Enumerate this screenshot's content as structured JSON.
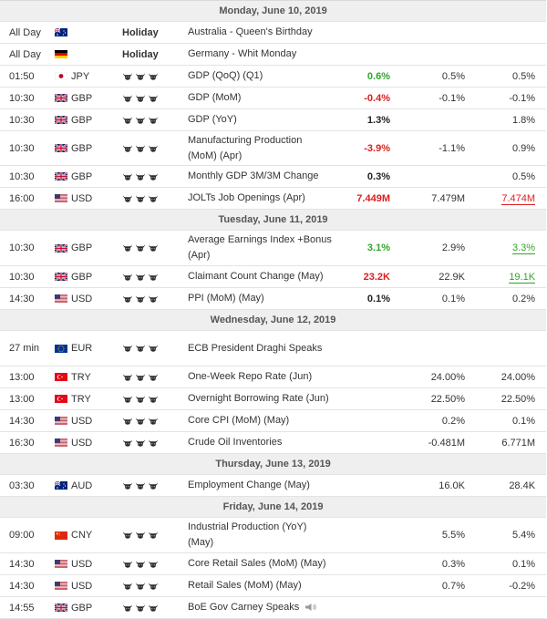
{
  "days": [
    {
      "label": "Monday, June 10, 2019",
      "events": [
        {
          "time": "All Day",
          "flag": "au-flag-icon",
          "currency": "",
          "importance": "holiday",
          "importance_label": "Holiday",
          "event": "Australia - Queen's Birthday",
          "actual": "",
          "actual_color": "",
          "forecast": "",
          "previous": "",
          "previous_color": "",
          "previous_mark": "",
          "tall": false
        },
        {
          "time": "All Day",
          "flag": "de-flag-icon",
          "currency": "",
          "importance": "holiday",
          "importance_label": "Holiday",
          "event": "Germany - Whit Monday",
          "actual": "",
          "actual_color": "",
          "forecast": "",
          "previous": "",
          "previous_color": "",
          "previous_mark": "",
          "tall": false
        },
        {
          "time": "01:50",
          "flag": "jp-flag-icon",
          "currency": "JPY",
          "importance": "bulls",
          "importance_label": "",
          "event": "GDP (QoQ) (Q1)",
          "actual": "0.6%",
          "actual_color": "green",
          "forecast": "0.5%",
          "previous": "0.5%",
          "previous_color": "",
          "previous_mark": "",
          "tall": false
        },
        {
          "time": "10:30",
          "flag": "gb-flag-icon",
          "currency": "GBP",
          "importance": "bulls",
          "importance_label": "",
          "event": "GDP (MoM)",
          "actual": "-0.4%",
          "actual_color": "red",
          "forecast": "-0.1%",
          "previous": "-0.1%",
          "previous_color": "",
          "previous_mark": "",
          "tall": false
        },
        {
          "time": "10:30",
          "flag": "gb-flag-icon",
          "currency": "GBP",
          "importance": "bulls",
          "importance_label": "",
          "event": "GDP (YoY)",
          "actual": "1.3%",
          "actual_color": "dark",
          "forecast": "",
          "previous": "1.8%",
          "previous_color": "",
          "previous_mark": "",
          "tall": false
        },
        {
          "time": "10:30",
          "flag": "gb-flag-icon",
          "currency": "GBP",
          "importance": "bulls",
          "importance_label": "",
          "event": "Manufacturing Production (MoM) (Apr)",
          "actual": "-3.9%",
          "actual_color": "red",
          "forecast": "-1.1%",
          "previous": "0.9%",
          "previous_color": "",
          "previous_mark": "",
          "tall": true
        },
        {
          "time": "10:30",
          "flag": "gb-flag-icon",
          "currency": "GBP",
          "importance": "bulls",
          "importance_label": "",
          "event": "Monthly GDP 3M/3M Change",
          "actual": "0.3%",
          "actual_color": "dark",
          "forecast": "",
          "previous": "0.5%",
          "previous_color": "",
          "previous_mark": "",
          "tall": false
        },
        {
          "time": "16:00",
          "flag": "us-flag-icon",
          "currency": "USD",
          "importance": "bulls",
          "importance_label": "",
          "event": "JOLTs Job Openings (Apr)",
          "actual": "7.449M",
          "actual_color": "red",
          "forecast": "7.479M",
          "previous": "7.474M",
          "previous_color": "red",
          "previous_mark": "ul-red",
          "tall": false
        }
      ]
    },
    {
      "label": "Tuesday, June 11, 2019",
      "events": [
        {
          "time": "10:30",
          "flag": "gb-flag-icon",
          "currency": "GBP",
          "importance": "bulls",
          "importance_label": "",
          "event": "Average Earnings Index +Bonus (Apr)",
          "actual": "3.1%",
          "actual_color": "green",
          "forecast": "2.9%",
          "previous": "3.3%",
          "previous_color": "green",
          "previous_mark": "ul-green",
          "tall": true
        },
        {
          "time": "10:30",
          "flag": "gb-flag-icon",
          "currency": "GBP",
          "importance": "bulls",
          "importance_label": "",
          "event": "Claimant Count Change (May)",
          "actual": "23.2K",
          "actual_color": "red",
          "forecast": "22.9K",
          "previous": "19.1K",
          "previous_color": "green",
          "previous_mark": "ul-green",
          "tall": false
        },
        {
          "time": "14:30",
          "flag": "us-flag-icon",
          "currency": "USD",
          "importance": "bulls",
          "importance_label": "",
          "event": "PPI (MoM) (May)",
          "actual": "0.1%",
          "actual_color": "dark",
          "forecast": "0.1%",
          "previous": "0.2%",
          "previous_color": "",
          "previous_mark": "",
          "tall": false
        }
      ]
    },
    {
      "label": "Wednesday, June 12, 2019",
      "events": [
        {
          "time": "27 min",
          "flag": "eu-flag-icon",
          "currency": "EUR",
          "importance": "bulls",
          "importance_label": "",
          "event": "ECB President Draghi Speaks",
          "actual": "",
          "actual_color": "",
          "forecast": "",
          "previous": "",
          "previous_color": "",
          "previous_mark": "",
          "tall": true
        },
        {
          "time": "13:00",
          "flag": "tr-flag-icon",
          "currency": "TRY",
          "importance": "bulls",
          "importance_label": "",
          "event": "One-Week Repo Rate (Jun)",
          "actual": "",
          "actual_color": "",
          "forecast": "24.00%",
          "previous": "24.00%",
          "previous_color": "",
          "previous_mark": "",
          "tall": false
        },
        {
          "time": "13:00",
          "flag": "tr-flag-icon",
          "currency": "TRY",
          "importance": "bulls",
          "importance_label": "",
          "event": "Overnight Borrowing Rate (Jun)",
          "actual": "",
          "actual_color": "",
          "forecast": "22.50%",
          "previous": "22.50%",
          "previous_color": "",
          "previous_mark": "",
          "tall": false
        },
        {
          "time": "14:30",
          "flag": "us-flag-icon",
          "currency": "USD",
          "importance": "bulls",
          "importance_label": "",
          "event": "Core CPI (MoM) (May)",
          "actual": "",
          "actual_color": "",
          "forecast": "0.2%",
          "previous": "0.1%",
          "previous_color": "",
          "previous_mark": "",
          "tall": false
        },
        {
          "time": "16:30",
          "flag": "us-flag-icon",
          "currency": "USD",
          "importance": "bulls",
          "importance_label": "",
          "event": "Crude Oil Inventories",
          "actual": "",
          "actual_color": "",
          "forecast": "-0.481M",
          "previous": "6.771M",
          "previous_color": "",
          "previous_mark": "",
          "tall": false
        }
      ]
    },
    {
      "label": "Thursday, June 13, 2019",
      "events": [
        {
          "time": "03:30",
          "flag": "au-flag-icon",
          "currency": "AUD",
          "importance": "bulls",
          "importance_label": "",
          "event": "Employment Change (May)",
          "actual": "",
          "actual_color": "",
          "forecast": "16.0K",
          "previous": "28.4K",
          "previous_color": "",
          "previous_mark": "",
          "tall": false
        }
      ]
    },
    {
      "label": "Friday, June 14, 2019",
      "events": [
        {
          "time": "09:00",
          "flag": "cn-flag-icon",
          "currency": "CNY",
          "importance": "bulls",
          "importance_label": "",
          "event": "Industrial Production (YoY) (May)",
          "actual": "",
          "actual_color": "",
          "forecast": "5.5%",
          "previous": "5.4%",
          "previous_color": "",
          "previous_mark": "",
          "tall": true
        },
        {
          "time": "14:30",
          "flag": "us-flag-icon",
          "currency": "USD",
          "importance": "bulls",
          "importance_label": "",
          "event": "Core Retail Sales (MoM) (May)",
          "actual": "",
          "actual_color": "",
          "forecast": "0.3%",
          "previous": "0.1%",
          "previous_color": "",
          "previous_mark": "",
          "tall": false
        },
        {
          "time": "14:30",
          "flag": "us-flag-icon",
          "currency": "USD",
          "importance": "bulls",
          "importance_label": "",
          "event": "Retail Sales (MoM) (May)",
          "actual": "",
          "actual_color": "",
          "forecast": "0.7%",
          "previous": "-0.2%",
          "previous_color": "",
          "previous_mark": "",
          "tall": false
        },
        {
          "time": "14:55",
          "flag": "gb-flag-icon",
          "currency": "GBP",
          "importance": "bulls",
          "importance_label": "",
          "event": "BoE Gov Carney Speaks",
          "actual": "",
          "actual_color": "",
          "forecast": "",
          "previous": "",
          "previous_color": "",
          "previous_mark": "",
          "tall": false,
          "speech": true
        }
      ]
    }
  ]
}
